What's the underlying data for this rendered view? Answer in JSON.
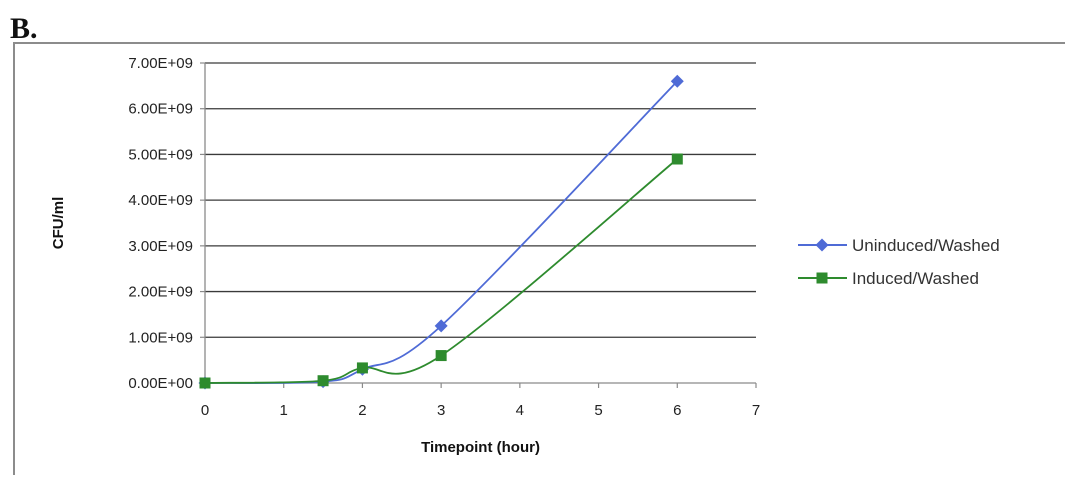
{
  "figure": {
    "panel_label": "B."
  },
  "chart_data": {
    "type": "line",
    "xlabel": "Timepoint (hour)",
    "ylabel": "CFU/ml",
    "xlim": [
      0,
      7
    ],
    "ylim": [
      0,
      7000000000
    ],
    "x_ticks": [
      0,
      1,
      2,
      3,
      4,
      5,
      6,
      7
    ],
    "x_tick_labels": [
      "0",
      "1",
      "2",
      "3",
      "4",
      "5",
      "6",
      "7"
    ],
    "y_ticks": [
      0,
      1000000000,
      2000000000,
      3000000000,
      4000000000,
      5000000000,
      6000000000,
      7000000000
    ],
    "y_tick_labels": [
      "0.00E+00",
      "1.00E+09",
      "2.00E+09",
      "3.00E+09",
      "4.00E+09",
      "5.00E+09",
      "6.00E+09",
      "7.00E+09"
    ],
    "grid": "horizontal",
    "legend_position": "right",
    "series": [
      {
        "name": "Uninduced/Washed",
        "marker": "diamond",
        "color": "#4f6bd6",
        "x": [
          0,
          1.5,
          2,
          3,
          6
        ],
        "y": [
          0,
          30000000,
          300000000,
          1250000000,
          6600000000
        ]
      },
      {
        "name": "Induced/Washed",
        "marker": "square",
        "color": "#2e8b2e",
        "x": [
          0,
          1.5,
          2,
          3,
          6
        ],
        "y": [
          0,
          50000000,
          330000000,
          600000000,
          4900000000
        ]
      }
    ]
  }
}
